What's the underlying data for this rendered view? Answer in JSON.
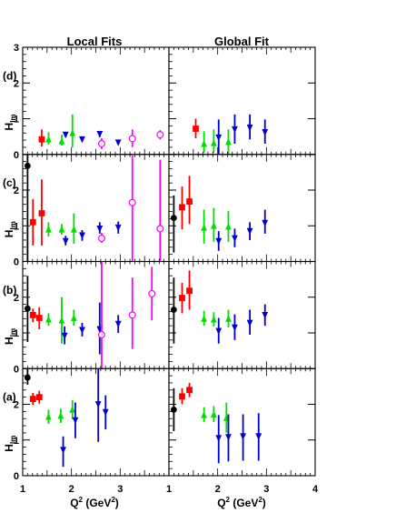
{
  "chart_data": {
    "type": "scatter",
    "columns": [
      {
        "key": "local",
        "title": "Local Fits",
        "xlim": [
          1,
          4
        ]
      },
      {
        "key": "global",
        "title": "Global Fit",
        "xlim": [
          1,
          4
        ]
      }
    ],
    "x_ticks": [
      "1",
      "2",
      "3",
      "4"
    ],
    "xlabel": {
      "main": "Q",
      "sup": "2",
      "tail": " (GeV",
      "sup2": "2",
      "end": ")"
    },
    "ylabel": {
      "main": "H",
      "sub": "Im"
    },
    "series_styles": {
      "black": {
        "color": "#000000",
        "marker": "circle"
      },
      "red": {
        "color": "#ff0000",
        "marker": "square"
      },
      "green": {
        "color": "#00dd00",
        "marker": "triangle-up"
      },
      "blue": {
        "color": "#0000cc",
        "marker": "triangle-down"
      },
      "magenta": {
        "color": "#ff00ff",
        "marker": "open-circle"
      }
    },
    "panels": [
      {
        "label": "(d)",
        "ylim": [
          0,
          3
        ],
        "y_ticks": [
          "0",
          "1",
          "2",
          "3"
        ],
        "local": [
          {
            "series": "red",
            "x": 1.39,
            "y": 0.42,
            "lo": 0.22,
            "hi": 0.7
          },
          {
            "series": "green",
            "x": 1.53,
            "y": 0.42,
            "lo": 0.28,
            "hi": 0.62
          },
          {
            "series": "green",
            "x": 1.8,
            "y": 0.37,
            "lo": 0.25,
            "hi": 0.55
          },
          {
            "series": "blue",
            "x": 1.88,
            "y": 0.55,
            "lo": 0.48,
            "hi": 0.62
          },
          {
            "series": "green",
            "x": 2.02,
            "y": 0.6,
            "lo": 0.2,
            "hi": 1.12
          },
          {
            "series": "blue",
            "x": 2.22,
            "y": 0.42,
            "lo": 0.42,
            "hi": 0.42
          },
          {
            "series": "blue",
            "x": 2.58,
            "y": 0.57,
            "lo": 0.48,
            "hi": 0.66
          },
          {
            "series": "magenta",
            "x": 2.62,
            "y": 0.3,
            "lo": 0.15,
            "hi": 0.45
          },
          {
            "series": "blue",
            "x": 2.96,
            "y": 0.33,
            "lo": 0.33,
            "hi": 0.33
          },
          {
            "series": "magenta",
            "x": 3.25,
            "y": 0.44,
            "lo": 0.2,
            "hi": 0.7
          },
          {
            "series": "magenta",
            "x": 3.82,
            "y": 0.55,
            "lo": 0.42,
            "hi": 0.68
          }
        ],
        "global": [
          {
            "series": "red",
            "x": 1.55,
            "y": 0.72,
            "lo": 0.45,
            "hi": 1.0
          },
          {
            "series": "green",
            "x": 1.72,
            "y": 0.3,
            "lo": 0.05,
            "hi": 0.65
          },
          {
            "series": "green",
            "x": 1.92,
            "y": 0.32,
            "lo": 0.05,
            "hi": 0.7
          },
          {
            "series": "blue",
            "x": 2.02,
            "y": 0.47,
            "lo": 0.0,
            "hi": 0.98
          },
          {
            "series": "green",
            "x": 2.22,
            "y": 0.35,
            "lo": 0.0,
            "hi": 0.7
          },
          {
            "series": "blue",
            "x": 2.35,
            "y": 0.7,
            "lo": 0.3,
            "hi": 1.12
          },
          {
            "series": "blue",
            "x": 2.66,
            "y": 0.75,
            "lo": 0.42,
            "hi": 1.12
          },
          {
            "series": "blue",
            "x": 2.97,
            "y": 0.62,
            "lo": 0.3,
            "hi": 0.98
          }
        ]
      },
      {
        "label": "(c)",
        "ylim": [
          0,
          3
        ],
        "y_ticks": [
          "0",
          "1",
          "2",
          "3"
        ],
        "local": [
          {
            "series": "black",
            "x": 1.1,
            "y": 2.68,
            "lo": 0.0,
            "hi": 3.0
          },
          {
            "series": "red",
            "x": 1.21,
            "y": 1.1,
            "lo": 0.45,
            "hi": 1.75
          },
          {
            "series": "red",
            "x": 1.39,
            "y": 1.35,
            "lo": 0.45,
            "hi": 2.3
          },
          {
            "series": "green",
            "x": 1.53,
            "y": 0.9,
            "lo": 0.7,
            "hi": 1.1
          },
          {
            "series": "green",
            "x": 1.8,
            "y": 0.9,
            "lo": 0.75,
            "hi": 1.05
          },
          {
            "series": "blue",
            "x": 1.88,
            "y": 0.57,
            "lo": 0.45,
            "hi": 0.72
          },
          {
            "series": "green",
            "x": 2.05,
            "y": 0.9,
            "lo": 0.5,
            "hi": 1.35
          },
          {
            "series": "blue",
            "x": 2.22,
            "y": 0.73,
            "lo": 0.58,
            "hi": 0.88
          },
          {
            "series": "blue",
            "x": 2.58,
            "y": 0.92,
            "lo": 0.78,
            "hi": 1.1
          },
          {
            "series": "magenta",
            "x": 2.62,
            "y": 0.65,
            "lo": 0.52,
            "hi": 0.8
          },
          {
            "series": "blue",
            "x": 2.96,
            "y": 0.95,
            "lo": 0.78,
            "hi": 1.12
          },
          {
            "series": "magenta",
            "x": 3.25,
            "y": 1.65,
            "lo": 0.0,
            "hi": 3.0
          },
          {
            "series": "magenta",
            "x": 3.82,
            "y": 0.92,
            "lo": 0.0,
            "hi": 2.85
          }
        ],
        "global": [
          {
            "series": "black",
            "x": 1.1,
            "y": 1.22,
            "lo": 0.25,
            "hi": 1.85
          },
          {
            "series": "red",
            "x": 1.27,
            "y": 1.52,
            "lo": 0.9,
            "hi": 2.1
          },
          {
            "series": "red",
            "x": 1.42,
            "y": 1.68,
            "lo": 1.05,
            "hi": 2.4
          },
          {
            "series": "green",
            "x": 1.72,
            "y": 0.95,
            "lo": 0.5,
            "hi": 1.45
          },
          {
            "series": "green",
            "x": 1.92,
            "y": 1.0,
            "lo": 0.55,
            "hi": 1.5
          },
          {
            "series": "blue",
            "x": 2.02,
            "y": 0.57,
            "lo": 0.3,
            "hi": 0.85
          },
          {
            "series": "green",
            "x": 2.22,
            "y": 0.98,
            "lo": 0.55,
            "hi": 1.42
          },
          {
            "series": "blue",
            "x": 2.35,
            "y": 0.65,
            "lo": 0.4,
            "hi": 0.92
          },
          {
            "series": "blue",
            "x": 2.66,
            "y": 0.85,
            "lo": 0.6,
            "hi": 1.1
          },
          {
            "series": "blue",
            "x": 2.97,
            "y": 1.08,
            "lo": 0.78,
            "hi": 1.45
          }
        ]
      },
      {
        "label": "(b)",
        "ylim": [
          0,
          3
        ],
        "y_ticks": [
          "0",
          "1",
          "2",
          "3"
        ],
        "local": [
          {
            "series": "black",
            "x": 1.1,
            "y": 1.68,
            "lo": 0.75,
            "hi": 2.6
          },
          {
            "series": "red",
            "x": 1.21,
            "y": 1.5,
            "lo": 1.3,
            "hi": 1.68
          },
          {
            "series": "red",
            "x": 1.34,
            "y": 1.42,
            "lo": 1.1,
            "hi": 1.72
          },
          {
            "series": "green",
            "x": 1.53,
            "y": 1.38,
            "lo": 1.2,
            "hi": 1.55
          },
          {
            "series": "green",
            "x": 1.8,
            "y": 1.35,
            "lo": 0.7,
            "hi": 2.0
          },
          {
            "series": "blue",
            "x": 1.86,
            "y": 0.92,
            "lo": 0.68,
            "hi": 1.18
          },
          {
            "series": "green",
            "x": 2.05,
            "y": 1.42,
            "lo": 1.2,
            "hi": 1.65
          },
          {
            "series": "blue",
            "x": 2.22,
            "y": 1.08,
            "lo": 0.9,
            "hi": 1.28
          },
          {
            "series": "blue",
            "x": 2.58,
            "y": 1.1,
            "lo": 0.4,
            "hi": 1.85
          },
          {
            "series": "magenta",
            "x": 2.62,
            "y": 0.95,
            "lo": 0.0,
            "hi": 3.0
          },
          {
            "series": "blue",
            "x": 2.96,
            "y": 1.25,
            "lo": 1.0,
            "hi": 1.5
          },
          {
            "series": "magenta",
            "x": 3.25,
            "y": 1.5,
            "lo": 0.55,
            "hi": 2.55
          },
          {
            "series": "magenta",
            "x": 3.65,
            "y": 2.1,
            "lo": 1.35,
            "hi": 2.85
          }
        ],
        "global": [
          {
            "series": "black",
            "x": 1.1,
            "y": 1.65,
            "lo": 0.7,
            "hi": 2.55
          },
          {
            "series": "red",
            "x": 1.27,
            "y": 1.98,
            "lo": 1.55,
            "hi": 2.4
          },
          {
            "series": "red",
            "x": 1.42,
            "y": 2.18,
            "lo": 1.65,
            "hi": 2.75
          },
          {
            "series": "green",
            "x": 1.72,
            "y": 1.4,
            "lo": 1.2,
            "hi": 1.62
          },
          {
            "series": "green",
            "x": 1.92,
            "y": 1.38,
            "lo": 1.18,
            "hi": 1.58
          },
          {
            "series": "blue",
            "x": 2.02,
            "y": 1.05,
            "lo": 0.7,
            "hi": 1.42
          },
          {
            "series": "green",
            "x": 2.22,
            "y": 1.4,
            "lo": 1.15,
            "hi": 1.65
          },
          {
            "series": "blue",
            "x": 2.35,
            "y": 1.15,
            "lo": 0.8,
            "hi": 1.52
          },
          {
            "series": "blue",
            "x": 2.66,
            "y": 1.28,
            "lo": 0.95,
            "hi": 1.65
          },
          {
            "series": "blue",
            "x": 2.97,
            "y": 1.5,
            "lo": 1.2,
            "hi": 1.8
          }
        ]
      },
      {
        "label": "(a)",
        "ylim": [
          0,
          3
        ],
        "y_ticks": [
          "0",
          "1",
          "2",
          "3"
        ],
        "local": [
          {
            "series": "black",
            "x": 1.1,
            "y": 2.75,
            "lo": 2.55,
            "hi": 3.0
          },
          {
            "series": "red",
            "x": 1.21,
            "y": 2.15,
            "lo": 1.98,
            "hi": 2.32
          },
          {
            "series": "red",
            "x": 1.34,
            "y": 2.2,
            "lo": 2.02,
            "hi": 2.38
          },
          {
            "series": "green",
            "x": 1.53,
            "y": 1.65,
            "lo": 1.45,
            "hi": 1.85
          },
          {
            "series": "green",
            "x": 1.78,
            "y": 1.68,
            "lo": 1.48,
            "hi": 1.88
          },
          {
            "series": "blue",
            "x": 1.83,
            "y": 0.72,
            "lo": 0.25,
            "hi": 1.1
          },
          {
            "series": "green",
            "x": 2.02,
            "y": 1.85,
            "lo": 1.58,
            "hi": 2.12
          },
          {
            "series": "blue",
            "x": 2.08,
            "y": 1.55,
            "lo": 1.05,
            "hi": 2.05
          },
          {
            "series": "blue",
            "x": 2.55,
            "y": 2.0,
            "lo": 0.95,
            "hi": 3.0
          },
          {
            "series": "blue",
            "x": 2.7,
            "y": 1.78,
            "lo": 1.3,
            "hi": 2.25
          }
        ],
        "global": [
          {
            "series": "black",
            "x": 1.1,
            "y": 1.85,
            "lo": 1.25,
            "hi": 2.45
          },
          {
            "series": "red",
            "x": 1.27,
            "y": 2.22,
            "lo": 2.0,
            "hi": 2.45
          },
          {
            "series": "red",
            "x": 1.42,
            "y": 2.4,
            "lo": 2.2,
            "hi": 2.6
          },
          {
            "series": "green",
            "x": 1.72,
            "y": 1.7,
            "lo": 1.5,
            "hi": 1.92
          },
          {
            "series": "green",
            "x": 1.92,
            "y": 1.72,
            "lo": 1.5,
            "hi": 1.95
          },
          {
            "series": "blue",
            "x": 2.02,
            "y": 1.05,
            "lo": 0.35,
            "hi": 1.7
          },
          {
            "series": "green",
            "x": 2.18,
            "y": 1.62,
            "lo": 1.2,
            "hi": 2.05
          },
          {
            "series": "blue",
            "x": 2.22,
            "y": 1.08,
            "lo": 0.4,
            "hi": 1.72
          },
          {
            "series": "blue",
            "x": 2.52,
            "y": 1.1,
            "lo": 0.42,
            "hi": 1.72
          },
          {
            "series": "blue",
            "x": 2.84,
            "y": 1.1,
            "lo": 0.42,
            "hi": 1.75
          }
        ]
      }
    ]
  }
}
